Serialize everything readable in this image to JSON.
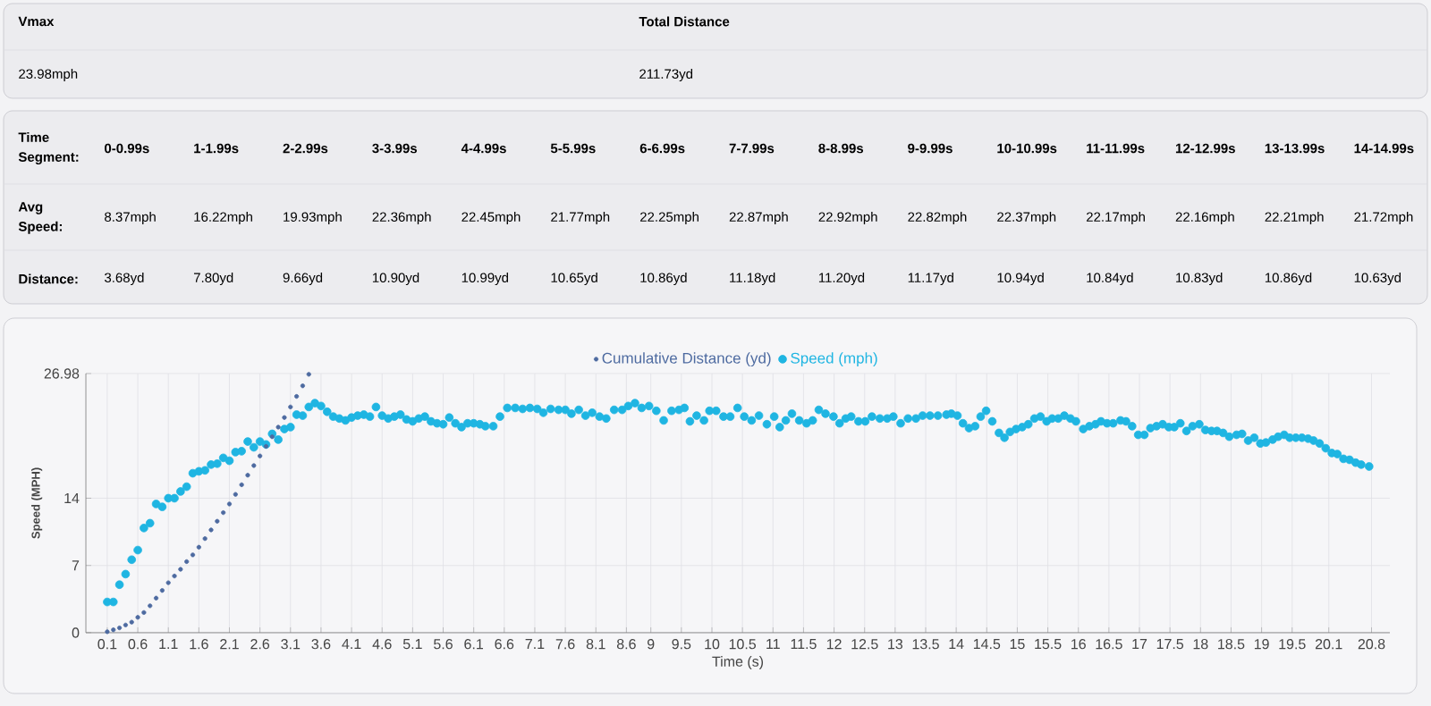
{
  "chart_data": [
    {
      "type": "other",
      "annotations": [
        "Vmax",
        "23.98mph",
        "Total Distance",
        "211.73yd"
      ],
      "xlabel": "Time Segment:",
      "categories": [
        "0-0.99s",
        "1-1.99s",
        "2-2.99s",
        "3-3.99s",
        "4-4.99s",
        "5-5.99s",
        "6-6.99s",
        "7-7.99s",
        "8-8.99s",
        "9-9.99s",
        "10-10.99s",
        "11-11.99s",
        "12-12.99s",
        "13-13.99s",
        "14-14.99s"
      ],
      "y_categories": [
        "Avg Speed:",
        "Distance:"
      ],
      "cell_labels": [
        [
          "8.37mph",
          "16.22mph",
          "19.93mph",
          "22.36mph",
          "22.45mph",
          "21.77mph",
          "22.25mph",
          "22.87mph",
          "22.92mph",
          "22.82mph",
          "22.37mph",
          "22.17mph",
          "22.16mph",
          "22.21mph",
          "21.72mph"
        ],
        [
          "3.68yd",
          "7.80yd",
          "9.66yd",
          "10.90yd",
          "10.99yd",
          "10.65yd",
          "10.86yd",
          "11.18yd",
          "11.20yd",
          "11.17yd",
          "10.94yd",
          "10.84yd",
          "10.83yd",
          "10.86yd",
          "10.63yd"
        ]
      ]
    },
    {
      "type": "scatter",
      "xlabel": "Time (s)",
      "ylabel": "Speed (MPH)",
      "xlim": [
        -0.25,
        21.1
      ],
      "ylim": [
        0,
        26.98
      ],
      "xticks": [
        0.1,
        0.6,
        1.1,
        1.6,
        2.1,
        2.6,
        3.1,
        3.6,
        4.1,
        4.6,
        5.1,
        5.6,
        6.1,
        6.6,
        7.1,
        7.6,
        8.1,
        8.6,
        9,
        9.5,
        10,
        10.5,
        11,
        11.5,
        12,
        12.5,
        13,
        13.5,
        14,
        14.5,
        15,
        15.5,
        16,
        16.5,
        17,
        17.5,
        18,
        18.5,
        19,
        19.5,
        20.1,
        20.8
      ],
      "yticks": [
        0,
        7,
        14,
        26.98
      ],
      "grid": true,
      "legend": "top",
      "marker": "circle",
      "series": [
        {
          "name": "Cumulative Distance (yd)",
          "color": "#4d6aa0",
          "x": [
            0.1,
            0.2,
            0.3,
            0.4,
            0.5,
            0.6,
            0.7,
            0.8,
            0.9,
            1.0,
            1.1,
            1.2,
            1.3,
            1.4,
            1.5,
            1.6,
            1.7,
            1.8,
            1.9,
            2.0,
            2.1,
            2.2,
            2.3,
            2.4,
            2.5,
            2.6,
            2.7,
            2.8,
            2.9,
            3.0,
            3.1,
            3.2,
            3.3,
            3.4
          ],
          "values": [
            0.1,
            0.3,
            0.5,
            0.8,
            1.1,
            1.6,
            2.1,
            2.8,
            3.6,
            4.4,
            5.2,
            5.9,
            6.6,
            7.4,
            8.1,
            8.9,
            9.8,
            10.7,
            11.6,
            12.5,
            13.4,
            14.4,
            15.4,
            16.4,
            17.4,
            18.4,
            19.4,
            20.4,
            21.4,
            22.4,
            23.5,
            24.6,
            25.7,
            26.9
          ]
        },
        {
          "name": "Speed (mph)",
          "color": "#1fb5e2",
          "x": [
            0.1,
            0.2,
            0.3,
            0.4,
            0.5,
            0.6,
            0.7,
            0.8,
            0.9,
            1.0,
            1.1,
            1.2,
            1.3,
            1.4,
            1.5,
            1.6,
            1.7,
            1.8,
            1.9,
            2.0,
            2.1,
            2.2,
            2.3,
            2.4,
            2.5,
            2.6,
            2.7,
            2.8,
            2.9,
            3.0,
            3.1,
            3.2,
            3.3,
            3.4,
            3.5,
            3.6,
            3.7,
            3.8,
            3.9,
            4.0,
            4.1,
            4.2,
            4.3,
            4.4,
            4.5,
            4.6,
            4.7,
            4.8,
            4.9,
            5.0,
            5.1,
            5.2,
            5.3,
            5.4,
            5.5,
            5.6,
            5.7,
            5.8,
            5.9,
            6.0,
            6.1,
            6.2,
            6.29,
            6.42,
            6.53,
            6.65,
            6.78,
            6.9,
            7.02,
            7.14,
            7.24,
            7.36,
            7.49,
            7.6,
            7.7,
            7.82,
            7.93,
            8.04,
            8.16,
            8.27,
            8.4,
            8.53,
            8.63,
            8.74,
            8.85,
            8.97,
            9.09,
            9.21,
            9.34,
            9.46,
            9.55,
            9.64,
            9.75,
            9.87,
            9.96,
            10.07,
            10.19,
            10.3,
            10.42,
            10.53,
            10.65,
            10.77,
            10.9,
            11.02,
            11.11,
            11.21,
            11.31,
            11.43,
            11.55,
            11.65,
            11.75,
            11.86,
            11.99,
            12.09,
            12.19,
            12.28,
            12.4,
            12.51,
            12.62,
            12.75,
            12.87,
            12.97,
            13.09,
            13.21,
            13.34,
            13.45,
            13.57,
            13.7,
            13.84,
            13.92,
            14.02,
            14.11,
            14.21,
            14.31,
            14.4,
            14.49,
            14.59,
            14.7,
            14.79,
            14.88,
            14.98,
            15.08,
            15.18,
            15.28,
            15.38,
            15.48,
            15.57,
            15.67,
            15.77,
            15.87,
            15.96,
            16.08,
            16.18,
            16.28,
            16.37,
            16.47,
            16.57,
            16.69,
            16.78,
            16.88,
            16.98,
            17.08,
            17.18,
            17.28,
            17.38,
            17.48,
            17.57,
            17.67,
            17.77,
            17.87,
            17.98,
            18.08,
            18.18,
            18.27,
            18.37,
            18.47,
            18.59,
            18.68,
            18.78,
            18.88,
            18.98,
            19.07,
            19.18,
            19.27,
            19.37,
            19.46,
            19.56,
            19.66,
            19.76,
            19.85,
            19.95,
            20.05,
            20.15,
            20.24,
            20.34,
            20.44,
            20.54,
            20.63,
            20.76
          ],
          "values": [
            3.2,
            3.2,
            5.0,
            6.1,
            7.6,
            8.6,
            10.9,
            11.4,
            13.4,
            13.1,
            14.0,
            14.0,
            14.7,
            15.2,
            16.6,
            16.8,
            16.9,
            17.5,
            17.6,
            18.2,
            17.9,
            18.8,
            18.9,
            19.9,
            19.3,
            19.9,
            19.6,
            20.7,
            20.1,
            21.2,
            21.4,
            22.7,
            22.6,
            23.5,
            23.9,
            23.6,
            23.0,
            22.5,
            22.3,
            22.1,
            22.4,
            22.6,
            22.7,
            22.5,
            23.5,
            22.6,
            22.3,
            22.5,
            22.7,
            22.2,
            22.0,
            22.3,
            22.5,
            22.0,
            21.8,
            21.7,
            22.4,
            21.8,
            21.4,
            21.8,
            21.8,
            21.7,
            21.5,
            21.5,
            22.5,
            23.4,
            23.4,
            23.3,
            23.4,
            23.3,
            22.9,
            23.3,
            23.2,
            23.2,
            22.8,
            23.2,
            22.6,
            22.9,
            22.5,
            22.3,
            23.2,
            23.2,
            23.6,
            23.9,
            23.4,
            23.6,
            23.1,
            22.1,
            23.1,
            23.2,
            23.4,
            22.0,
            22.6,
            22.1,
            23.1,
            23.1,
            22.5,
            22.5,
            23.4,
            22.5,
            22.1,
            22.6,
            21.7,
            22.5,
            21.4,
            22.1,
            22.8,
            22.1,
            21.8,
            22.1,
            23.2,
            22.8,
            22.5,
            21.8,
            22.3,
            22.5,
            22.0,
            22.0,
            22.5,
            22.3,
            22.3,
            22.5,
            21.8,
            22.3,
            22.3,
            22.6,
            22.6,
            22.6,
            22.7,
            22.8,
            22.6,
            21.8,
            21.3,
            21.5,
            22.5,
            23.1,
            22.0,
            20.8,
            20.3,
            20.9,
            21.2,
            21.4,
            21.7,
            22.3,
            22.5,
            22.0,
            22.3,
            22.3,
            22.6,
            22.3,
            22.0,
            21.2,
            21.5,
            21.7,
            22.0,
            21.8,
            21.8,
            22.1,
            22.0,
            21.5,
            20.6,
            20.6,
            21.3,
            21.5,
            21.7,
            21.4,
            21.4,
            21.8,
            21.0,
            21.5,
            21.7,
            21.1,
            21.0,
            21.0,
            20.8,
            20.4,
            20.6,
            20.7,
            20.0,
            20.3,
            19.7,
            19.8,
            20.1,
            20.4,
            20.6,
            20.3,
            20.3,
            20.3,
            20.2,
            20.0,
            19.7,
            19.2,
            18.7,
            18.6,
            18.1,
            18.0,
            17.7,
            17.5,
            17.3
          ]
        }
      ]
    }
  ]
}
